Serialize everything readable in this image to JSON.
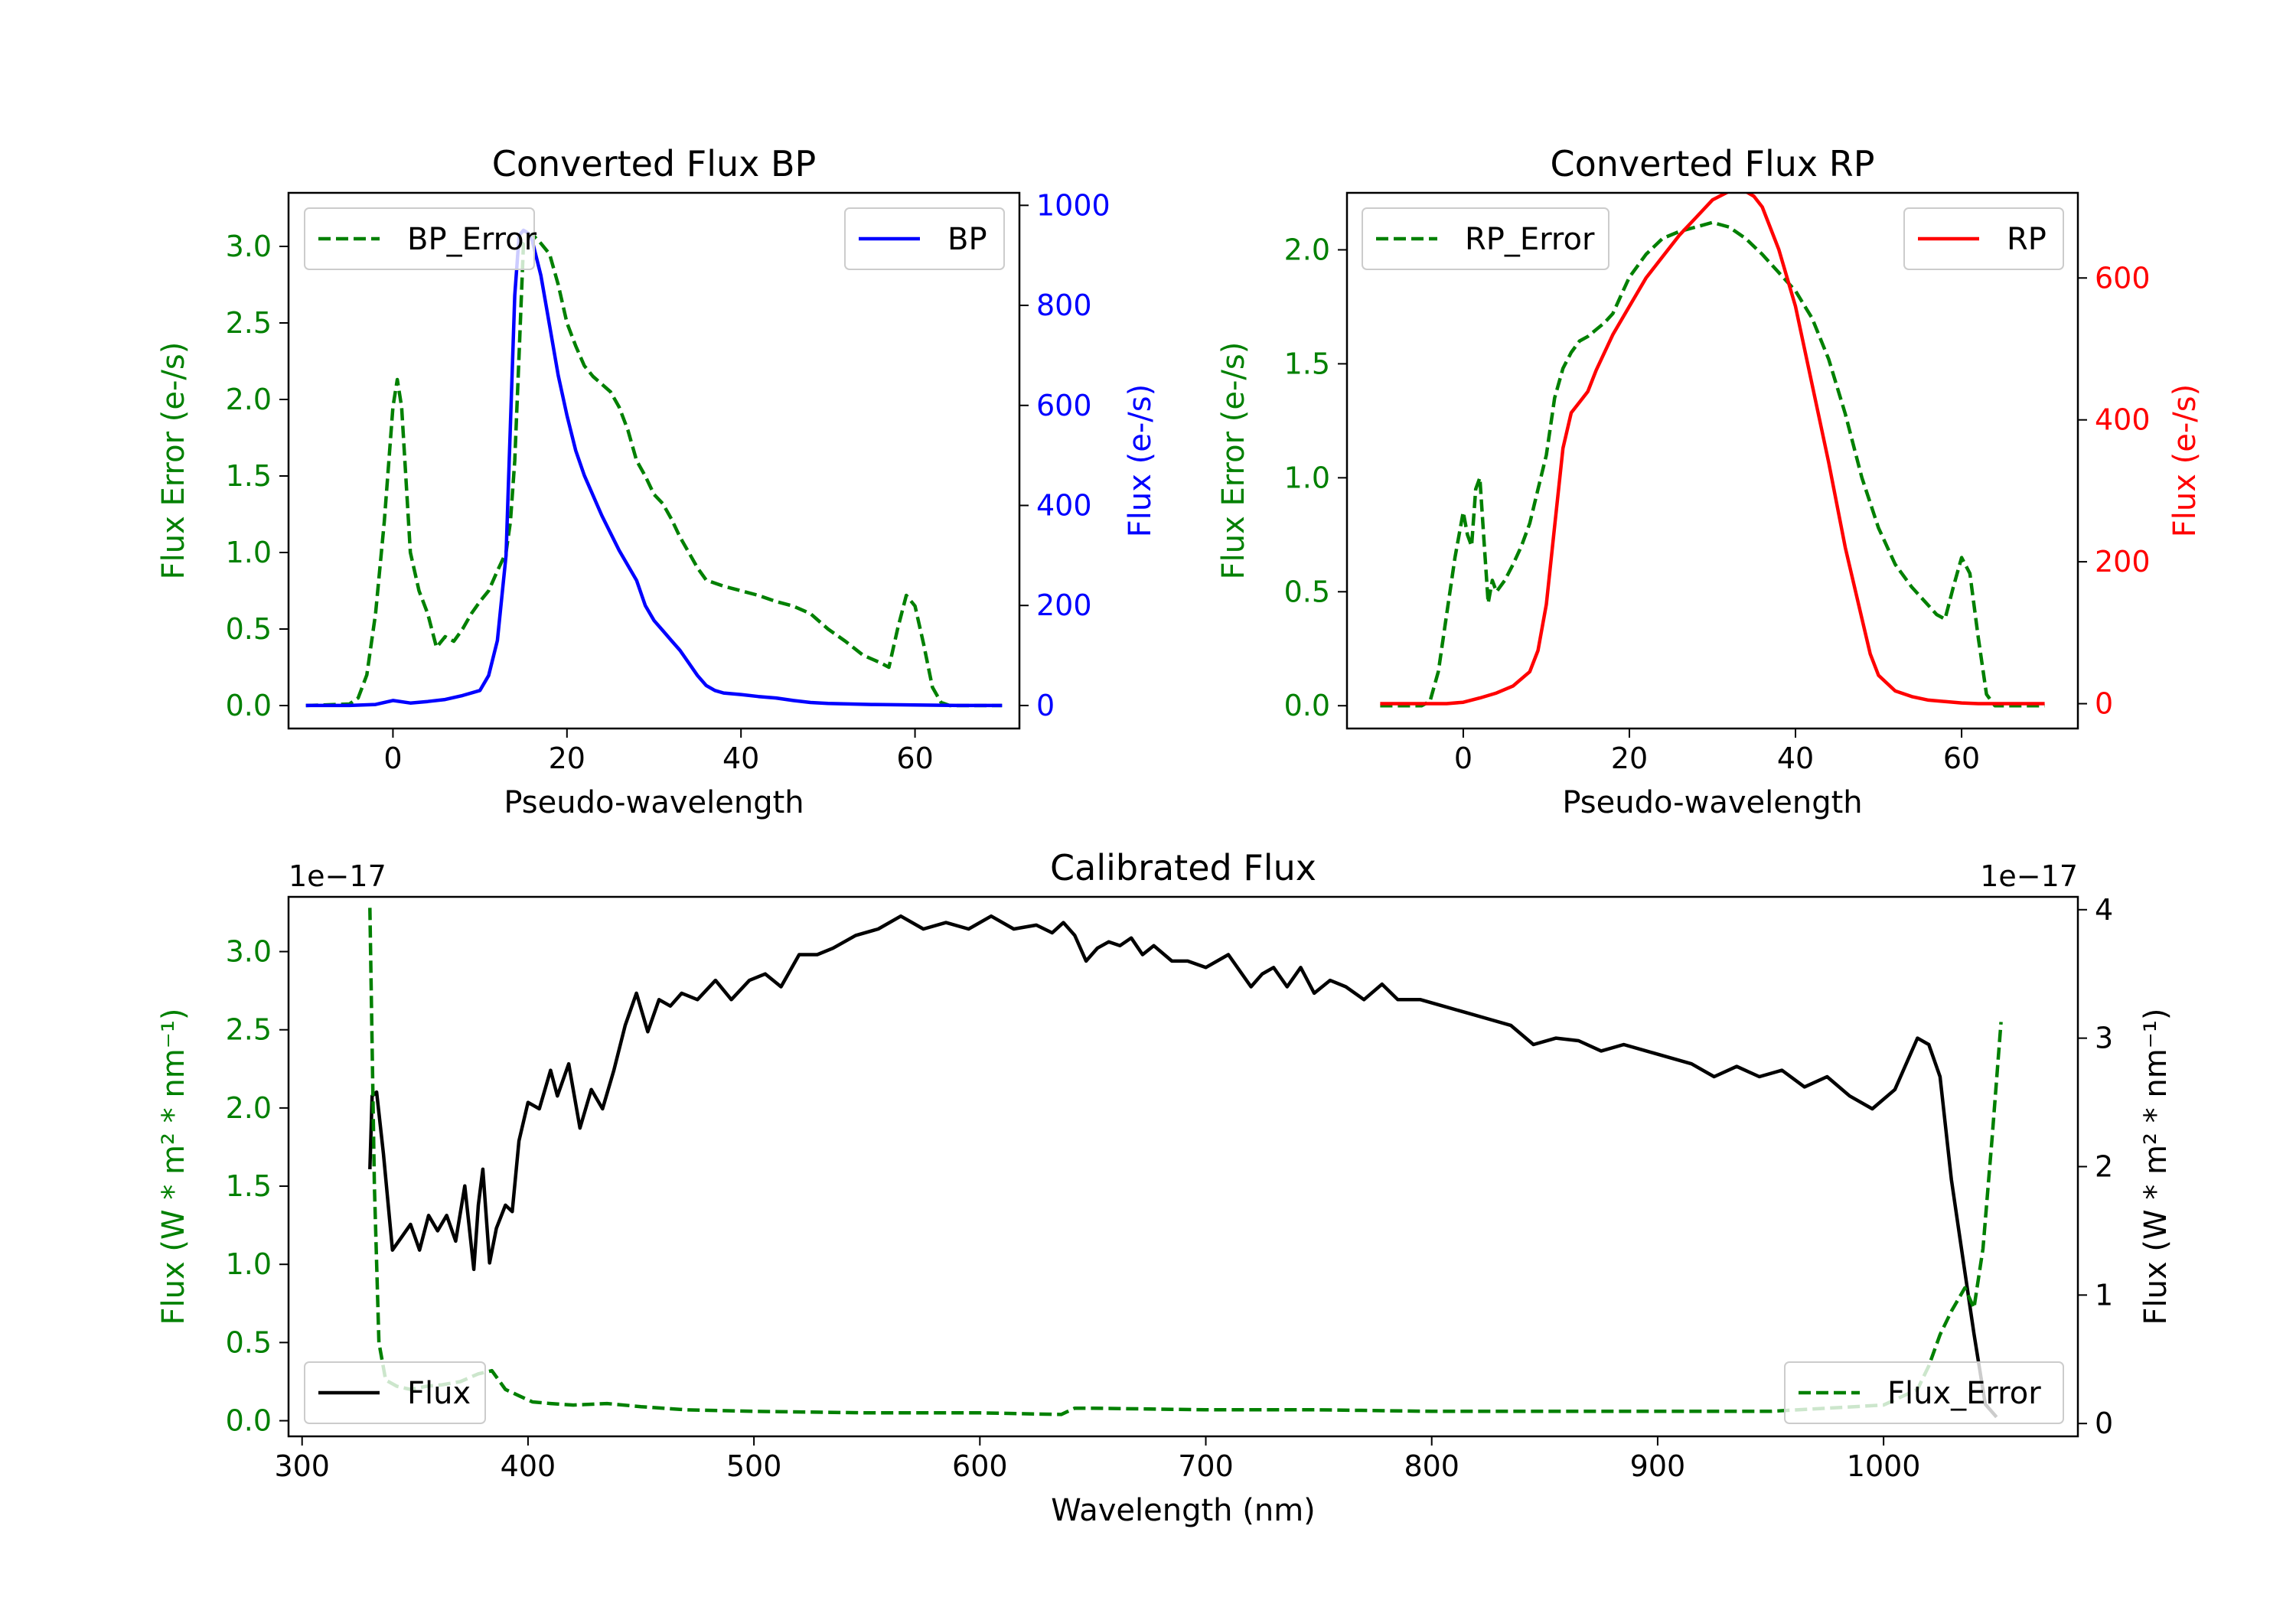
{
  "chart_data": [
    {
      "type": "line",
      "title": "Converted Flux BP",
      "xlabel": "Pseudo-wavelength",
      "ylabel_left": "Flux Error (e-/s)",
      "ylabel_right": "Flux (e-/s)",
      "xlim": [
        -12,
        72
      ],
      "ylim_left": [
        -0.15,
        3.35
      ],
      "ylim_right": [
        -46,
        1025
      ],
      "xticks": [
        0,
        20,
        40,
        60
      ],
      "yticks_left": [
        0.0,
        0.5,
        1.0,
        1.5,
        2.0,
        2.5,
        3.0
      ],
      "yticks_right": [
        0,
        200,
        400,
        600,
        800,
        1000
      ],
      "legend_left": "top-left",
      "legend_right": "top-right",
      "series": [
        {
          "name": "BP_Error",
          "axis": "left",
          "style": "dashed",
          "color": "#008000",
          "x": [
            -10,
            -5,
            -4,
            -3,
            -2,
            -1,
            0,
            0.5,
            1,
            2,
            3,
            4,
            5,
            6,
            7,
            8,
            9,
            10,
            11,
            12,
            13,
            13.5,
            14,
            14.5,
            15,
            16,
            17,
            18,
            19,
            20,
            21,
            22,
            23,
            24,
            25,
            26,
            27,
            28,
            29,
            30,
            31,
            32,
            33,
            34,
            35,
            36,
            38,
            40,
            42,
            44,
            46,
            48,
            50,
            52,
            54,
            56,
            57,
            58,
            59,
            60,
            61,
            62,
            63,
            64,
            66,
            70
          ],
          "y": [
            0.0,
            0.01,
            0.05,
            0.2,
            0.6,
            1.2,
            1.95,
            2.13,
            1.95,
            1.0,
            0.75,
            0.6,
            0.38,
            0.45,
            0.42,
            0.5,
            0.6,
            0.68,
            0.75,
            0.88,
            1.0,
            1.2,
            1.6,
            2.3,
            3.02,
            3.08,
            3.02,
            2.95,
            2.75,
            2.5,
            2.35,
            2.22,
            2.15,
            2.1,
            2.05,
            1.95,
            1.8,
            1.6,
            1.5,
            1.38,
            1.32,
            1.22,
            1.1,
            1.0,
            0.9,
            0.82,
            0.78,
            0.75,
            0.72,
            0.68,
            0.65,
            0.6,
            0.5,
            0.42,
            0.33,
            0.28,
            0.25,
            0.5,
            0.72,
            0.65,
            0.4,
            0.12,
            0.02,
            0.0,
            0.0,
            0.0
          ]
        },
        {
          "name": "BP",
          "axis": "right",
          "style": "solid",
          "color": "#0000ff",
          "x": [
            -10,
            -5,
            -2,
            0,
            2,
            4,
            6,
            8,
            10,
            11,
            12,
            13,
            13.5,
            14,
            14.5,
            15,
            15.5,
            16,
            17,
            18,
            19,
            20,
            21,
            22,
            24,
            26,
            28,
            29,
            30,
            31,
            32,
            33,
            34,
            35,
            36,
            37,
            38,
            40,
            42,
            44,
            46,
            48,
            50,
            55,
            60,
            65,
            70
          ],
          "y": [
            0,
            0,
            2,
            10,
            5,
            8,
            12,
            20,
            30,
            60,
            130,
            300,
            560,
            820,
            940,
            950,
            945,
            930,
            860,
            760,
            660,
            580,
            510,
            460,
            380,
            310,
            250,
            200,
            170,
            150,
            130,
            110,
            85,
            60,
            40,
            30,
            25,
            22,
            18,
            15,
            10,
            6,
            4,
            2,
            1,
            0,
            0
          ]
        }
      ]
    },
    {
      "type": "line",
      "title": "Converted Flux RP",
      "xlabel": "Pseudo-wavelength",
      "ylabel_left": "Flux Error (e-/s)",
      "ylabel_right": "Flux (e-/s)",
      "xlim": [
        -14,
        74
      ],
      "ylim_left": [
        -0.1,
        2.25
      ],
      "ylim_right": [
        -35,
        720
      ],
      "xticks": [
        0,
        20,
        40,
        60
      ],
      "yticks_left": [
        0.0,
        0.5,
        1.0,
        1.5,
        2.0
      ],
      "yticks_right": [
        0,
        200,
        400,
        600
      ],
      "legend_left": "top-left",
      "legend_right": "top-right",
      "series": [
        {
          "name": "RP_Error",
          "axis": "left",
          "style": "dashed",
          "color": "#008000",
          "x": [
            -10,
            -5,
            -4,
            -3,
            -2,
            -1,
            0,
            0.5,
            1,
            1.5,
            2,
            2.5,
            3,
            3.5,
            4,
            5,
            6,
            7,
            8,
            9,
            10,
            11,
            12,
            13,
            14,
            15,
            16,
            17,
            18,
            19,
            20,
            22,
            24,
            26,
            28,
            30,
            32,
            34,
            36,
            38,
            40,
            42,
            44,
            46,
            48,
            50,
            52,
            54,
            55,
            56,
            57,
            58,
            59,
            60,
            61,
            62,
            63,
            64,
            66,
            70
          ],
          "y": [
            0.0,
            0.0,
            0.02,
            0.15,
            0.4,
            0.65,
            0.85,
            0.75,
            0.7,
            0.95,
            1.0,
            0.72,
            0.45,
            0.55,
            0.5,
            0.55,
            0.62,
            0.7,
            0.8,
            0.95,
            1.1,
            1.35,
            1.48,
            1.55,
            1.6,
            1.62,
            1.65,
            1.68,
            1.72,
            1.8,
            1.88,
            1.98,
            2.05,
            2.08,
            2.1,
            2.12,
            2.1,
            2.05,
            1.98,
            1.9,
            1.82,
            1.7,
            1.52,
            1.28,
            1.0,
            0.78,
            0.62,
            0.52,
            0.48,
            0.44,
            0.4,
            0.38,
            0.52,
            0.65,
            0.58,
            0.3,
            0.05,
            0.0,
            0.0,
            0.0
          ]
        },
        {
          "name": "RP",
          "axis": "right",
          "style": "solid",
          "color": "#ff0000",
          "x": [
            -10,
            -5,
            -2,
            0,
            2,
            4,
            6,
            8,
            9,
            10,
            11,
            12,
            13,
            14,
            15,
            16,
            18,
            20,
            22,
            24,
            26,
            28,
            30,
            32,
            33,
            34,
            35,
            36,
            38,
            40,
            42,
            44,
            46,
            48,
            49,
            50,
            52,
            54,
            56,
            58,
            60,
            62,
            64,
            66,
            70
          ],
          "y": [
            0,
            0,
            0,
            2,
            8,
            15,
            25,
            45,
            75,
            140,
            250,
            360,
            410,
            425,
            440,
            470,
            520,
            560,
            600,
            630,
            660,
            685,
            710,
            722,
            725,
            722,
            715,
            700,
            640,
            560,
            450,
            340,
            220,
            120,
            70,
            40,
            18,
            10,
            5,
            3,
            1,
            0,
            0,
            0,
            0
          ]
        }
      ]
    },
    {
      "type": "line",
      "title": "Calibrated Flux",
      "xlabel": "Wavelength (nm)",
      "ylabel_left": "Flux (W * m² * nm⁻¹)",
      "ylabel_right": "Flux (W * m² * nm⁻¹)",
      "offset_left": "1e−17",
      "offset_right": "1e−17",
      "xlim": [
        294,
        1086
      ],
      "ylim_left": [
        -0.1,
        3.35
      ],
      "ylim_right": [
        -0.1,
        4.1
      ],
      "xticks": [
        300,
        400,
        500,
        600,
        700,
        800,
        900,
        1000
      ],
      "yticks_left": [
        0.0,
        0.5,
        1.0,
        1.5,
        2.0,
        2.5,
        3.0
      ],
      "yticks_right": [
        0,
        1,
        2,
        3,
        4
      ],
      "legend_left": "bottom-left",
      "legend_right": "bottom-right",
      "series": [
        {
          "name": "Flux",
          "axis": "right",
          "style": "solid",
          "color": "#000000",
          "x": [
            330,
            331,
            333,
            336,
            340,
            344,
            348,
            352,
            356,
            360,
            364,
            368,
            372,
            376,
            378,
            380,
            383,
            386,
            390,
            393,
            396,
            400,
            405,
            410,
            413,
            418,
            423,
            428,
            433,
            438,
            443,
            448,
            453,
            458,
            463,
            468,
            475,
            483,
            490,
            498,
            505,
            512,
            520,
            528,
            535,
            545,
            555,
            565,
            575,
            585,
            595,
            605,
            615,
            625,
            632,
            637,
            642,
            647,
            652,
            657,
            662,
            667,
            672,
            677,
            685,
            692,
            700,
            710,
            720,
            725,
            730,
            736,
            742,
            748,
            755,
            762,
            770,
            778,
            785,
            795,
            805,
            815,
            825,
            835,
            845,
            855,
            865,
            875,
            885,
            895,
            905,
            915,
            925,
            935,
            945,
            955,
            965,
            975,
            985,
            995,
            1005,
            1015,
            1020,
            1025,
            1030,
            1035,
            1040,
            1045,
            1050
          ],
          "y": [
            1.98,
            2.55,
            2.58,
            2.1,
            1.35,
            1.45,
            1.55,
            1.35,
            1.62,
            1.5,
            1.62,
            1.42,
            1.85,
            1.2,
            1.7,
            1.98,
            1.25,
            1.52,
            1.7,
            1.65,
            2.2,
            2.5,
            2.45,
            2.75,
            2.55,
            2.8,
            2.3,
            2.6,
            2.45,
            2.75,
            3.1,
            3.35,
            3.05,
            3.3,
            3.25,
            3.35,
            3.3,
            3.45,
            3.3,
            3.45,
            3.5,
            3.4,
            3.65,
            3.65,
            3.7,
            3.8,
            3.85,
            3.95,
            3.85,
            3.9,
            3.85,
            3.95,
            3.85,
            3.88,
            3.82,
            3.9,
            3.8,
            3.6,
            3.7,
            3.75,
            3.72,
            3.78,
            3.65,
            3.72,
            3.6,
            3.6,
            3.55,
            3.65,
            3.4,
            3.5,
            3.55,
            3.4,
            3.55,
            3.35,
            3.45,
            3.4,
            3.3,
            3.42,
            3.3,
            3.3,
            3.25,
            3.2,
            3.15,
            3.1,
            2.95,
            3.0,
            2.98,
            2.9,
            2.95,
            2.9,
            2.85,
            2.8,
            2.7,
            2.78,
            2.7,
            2.75,
            2.62,
            2.7,
            2.55,
            2.45,
            2.6,
            3.0,
            2.95,
            2.7,
            1.9,
            1.3,
            0.7,
            0.15,
            0.05
          ]
        },
        {
          "name": "Flux_Error",
          "axis": "left",
          "style": "dashed",
          "color": "#008000",
          "x": [
            330,
            332,
            334,
            337,
            342,
            348,
            355,
            362,
            370,
            378,
            384,
            390,
            396,
            402,
            410,
            420,
            435,
            450,
            470,
            500,
            550,
            600,
            636,
            642,
            650,
            700,
            750,
            800,
            850,
            900,
            950,
            1000,
            1015,
            1020,
            1025,
            1030,
            1036,
            1040,
            1044,
            1048,
            1052
          ],
          "y": [
            3.28,
            1.5,
            0.5,
            0.26,
            0.22,
            0.2,
            0.22,
            0.23,
            0.25,
            0.3,
            0.32,
            0.2,
            0.16,
            0.12,
            0.11,
            0.1,
            0.11,
            0.09,
            0.07,
            0.06,
            0.05,
            0.05,
            0.04,
            0.08,
            0.08,
            0.07,
            0.07,
            0.06,
            0.06,
            0.06,
            0.06,
            0.1,
            0.2,
            0.35,
            0.55,
            0.7,
            0.85,
            0.72,
            1.1,
            1.8,
            2.55
          ]
        }
      ]
    }
  ]
}
